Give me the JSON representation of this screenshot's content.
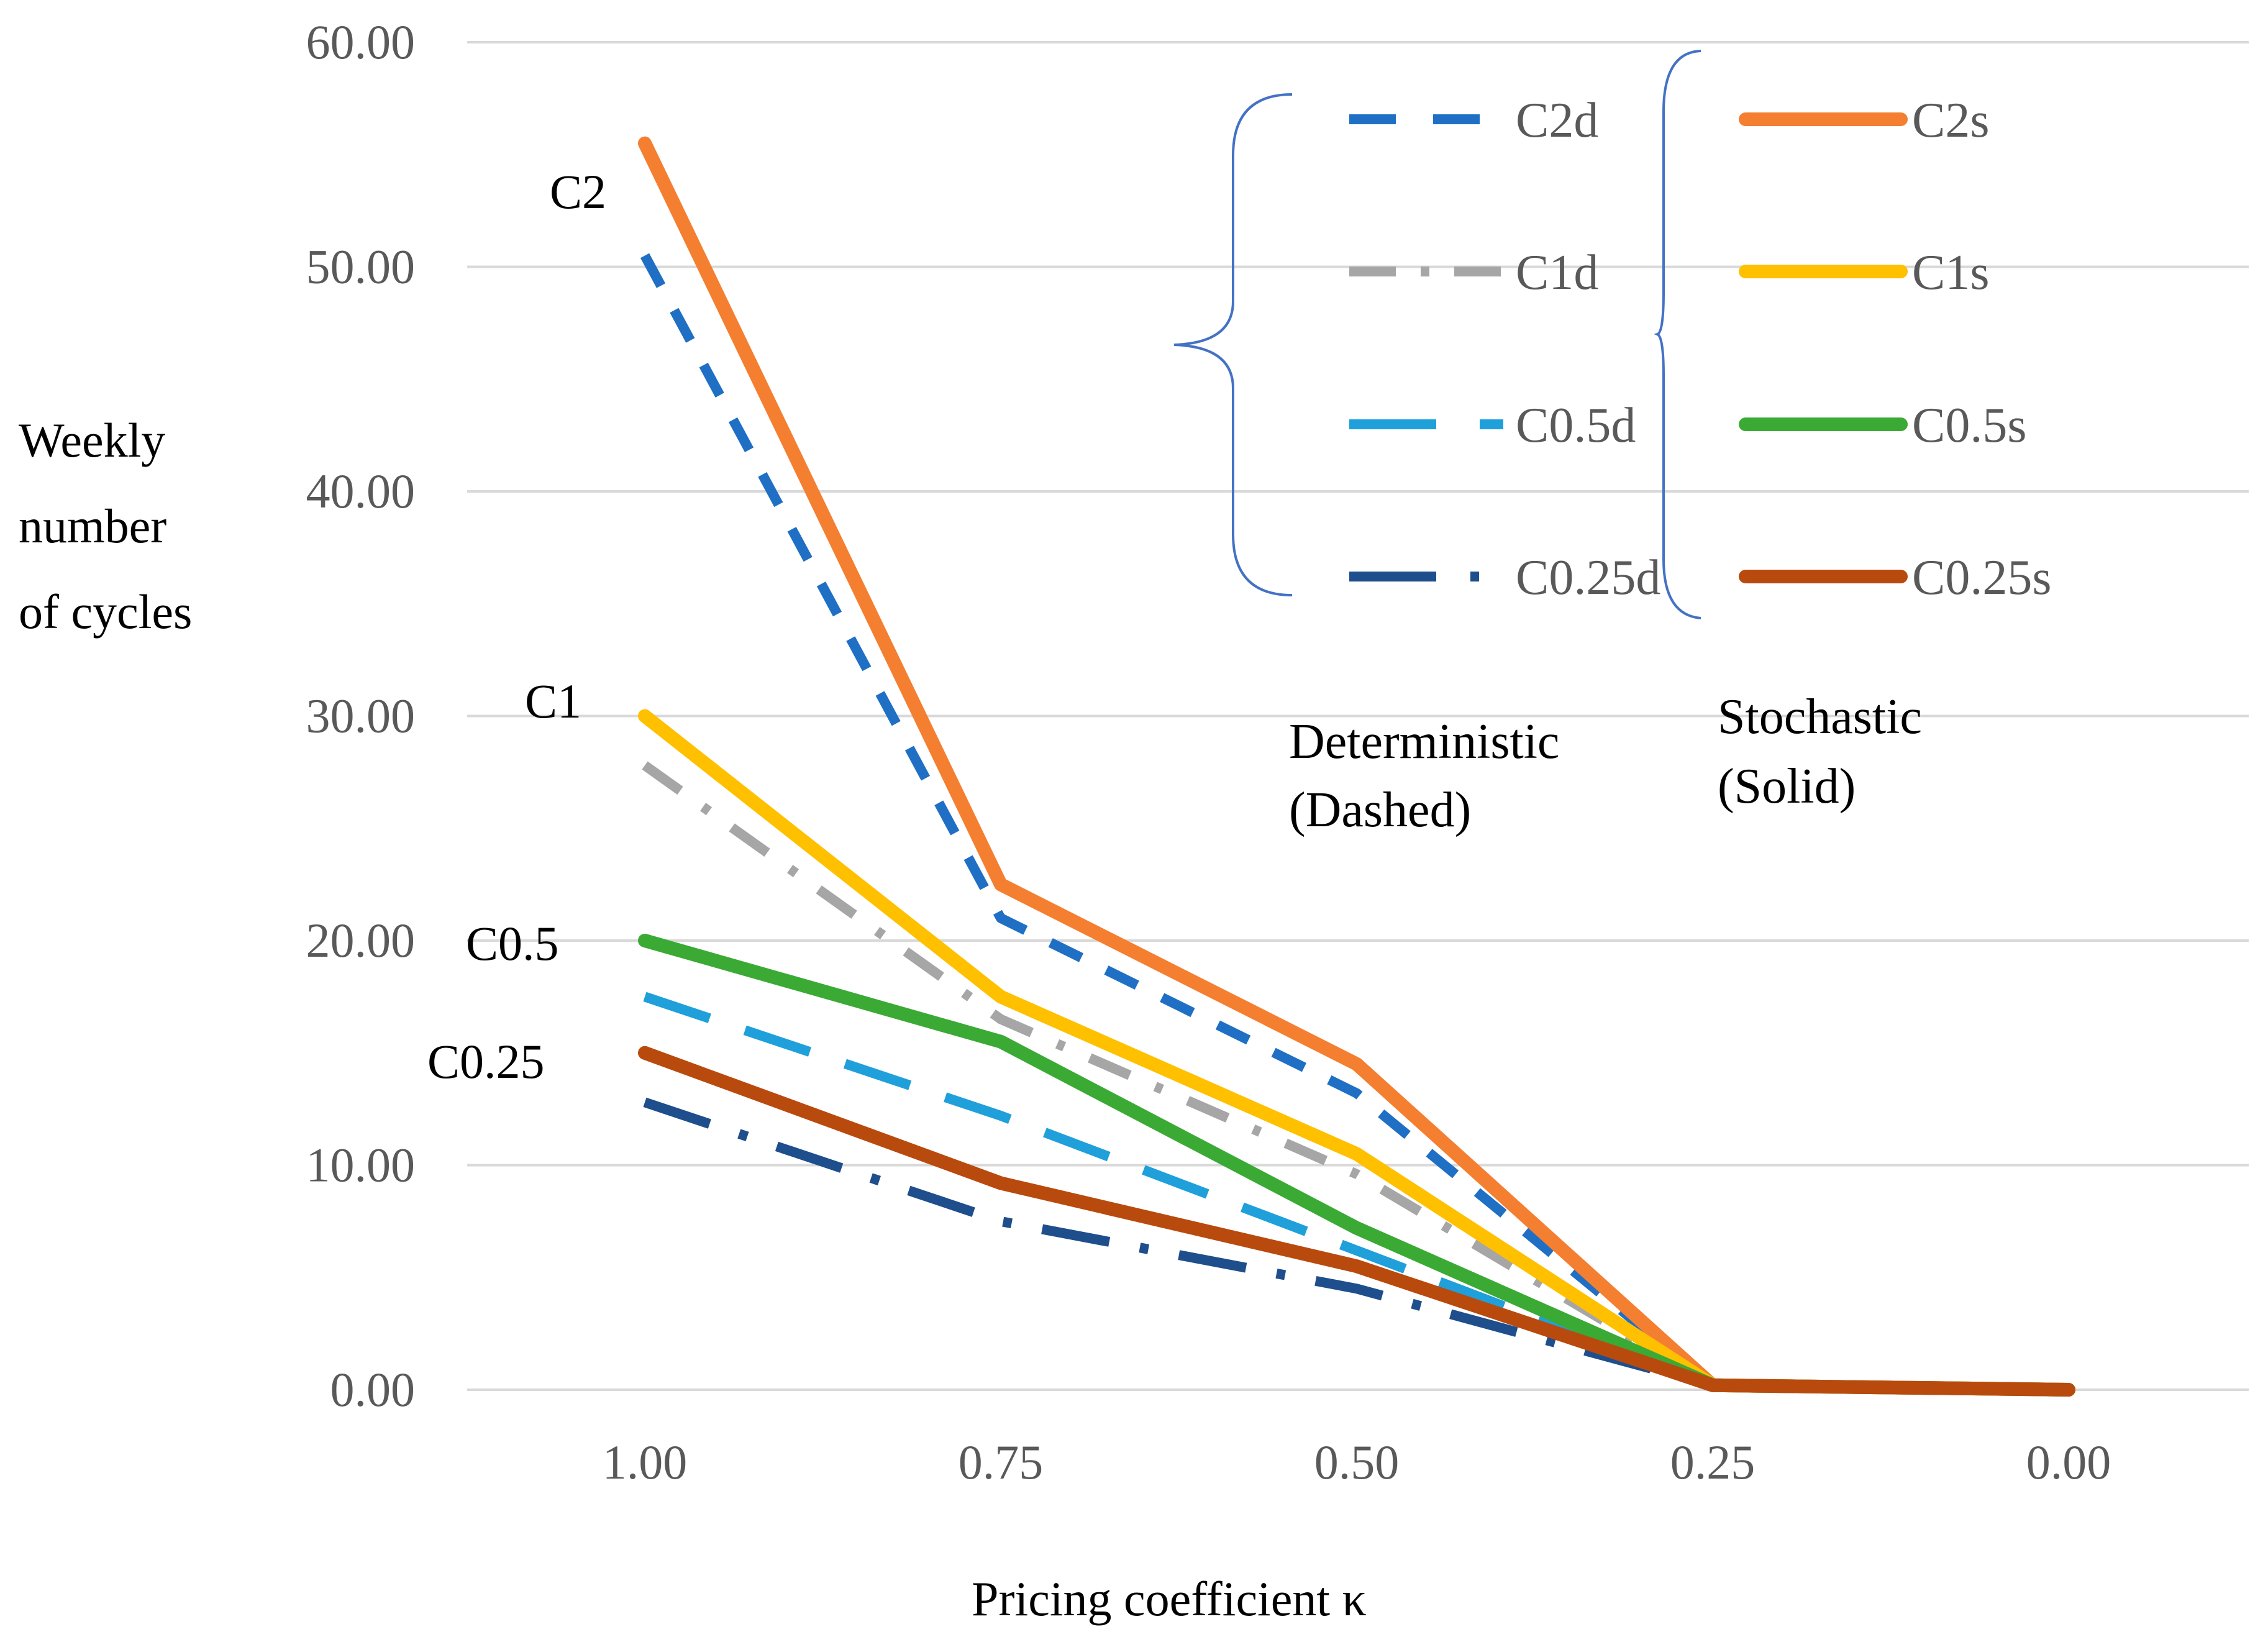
{
  "chart_data": {
    "type": "line",
    "title": "",
    "xlabel": "Pricing coefficient κ",
    "ylabel_lines": [
      "Weekly",
      "number",
      "of cycles"
    ],
    "categories": [
      "1.00",
      "0.75",
      "0.50",
      "0.25",
      "0.00"
    ],
    "y_ticks": [
      "0.00",
      "10.00",
      "20.00",
      "30.00",
      "40.00",
      "50.00",
      "60.00"
    ],
    "ylim": [
      0,
      60
    ],
    "grid": true,
    "series": [
      {
        "key": "c2d",
        "name": "C2d",
        "values": [
          50.5,
          21.0,
          13.2,
          0.2,
          0.0
        ],
        "color": "#1F6FC5",
        "style": "dash"
      },
      {
        "key": "c1d",
        "name": "C1d",
        "values": [
          27.8,
          16.5,
          9.6,
          0.2,
          0.0
        ],
        "color": "#A6A6A6",
        "style": "dashdot"
      },
      {
        "key": "c05d",
        "name": "C0.5d",
        "values": [
          17.5,
          12.2,
          6.2,
          0.2,
          0.0
        ],
        "color": "#1FA0DA",
        "style": "longdash"
      },
      {
        "key": "c025d",
        "name": "C0.25d",
        "values": [
          12.8,
          7.5,
          4.5,
          0.2,
          0.0
        ],
        "color": "#1E4E8C",
        "style": "longdashdot"
      },
      {
        "key": "c2s",
        "name": "C2s",
        "values": [
          55.5,
          22.5,
          14.5,
          0.2,
          0.0
        ],
        "color": "#F47F30",
        "style": "solid"
      },
      {
        "key": "c1s",
        "name": "C1s",
        "values": [
          30.0,
          17.5,
          10.5,
          0.2,
          0.0
        ],
        "color": "#FFC000",
        "style": "solid"
      },
      {
        "key": "c05s",
        "name": "C0.5s",
        "values": [
          20.0,
          15.5,
          7.2,
          0.2,
          0.0
        ],
        "color": "#3AAA35",
        "style": "solid"
      },
      {
        "key": "c025s",
        "name": "C0.25s",
        "values": [
          15.0,
          9.2,
          5.5,
          0.2,
          0.0
        ],
        "color": "#B94A0E",
        "style": "solid"
      }
    ],
    "series_labels": [
      "C2",
      "C1",
      "C0.5",
      "C0.25"
    ],
    "legend_groups": {
      "deterministic": [
        "Deterministic",
        "(Dashed)"
      ],
      "stochastic": [
        "Stochastic",
        "(Solid)"
      ]
    }
  }
}
